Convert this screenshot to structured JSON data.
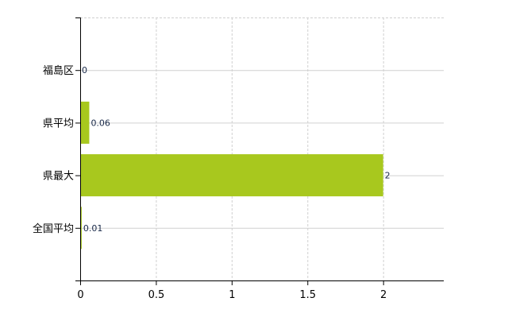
{
  "chart_data": {
    "type": "bar",
    "orientation": "horizontal",
    "categories": [
      "福島区",
      "県平均",
      "県最大",
      "全国平均"
    ],
    "values": [
      0,
      0.06,
      2,
      0.01
    ],
    "data_labels": [
      "0",
      "0.06",
      "2",
      "0.01"
    ],
    "title": "",
    "xlabel": "",
    "ylabel": "",
    "xlim": [
      0,
      2.4
    ],
    "x_ticks": [
      0,
      0.5,
      1,
      1.5,
      2
    ],
    "x_tick_labels": [
      "0",
      "0.5",
      "1",
      "1.5",
      "2"
    ],
    "grid": true,
    "legend": "none",
    "colors": {
      "bar": "#a8c81e",
      "label": "#1a2a4a",
      "grid": "#d0d0d0",
      "axis": "#000000"
    }
  }
}
